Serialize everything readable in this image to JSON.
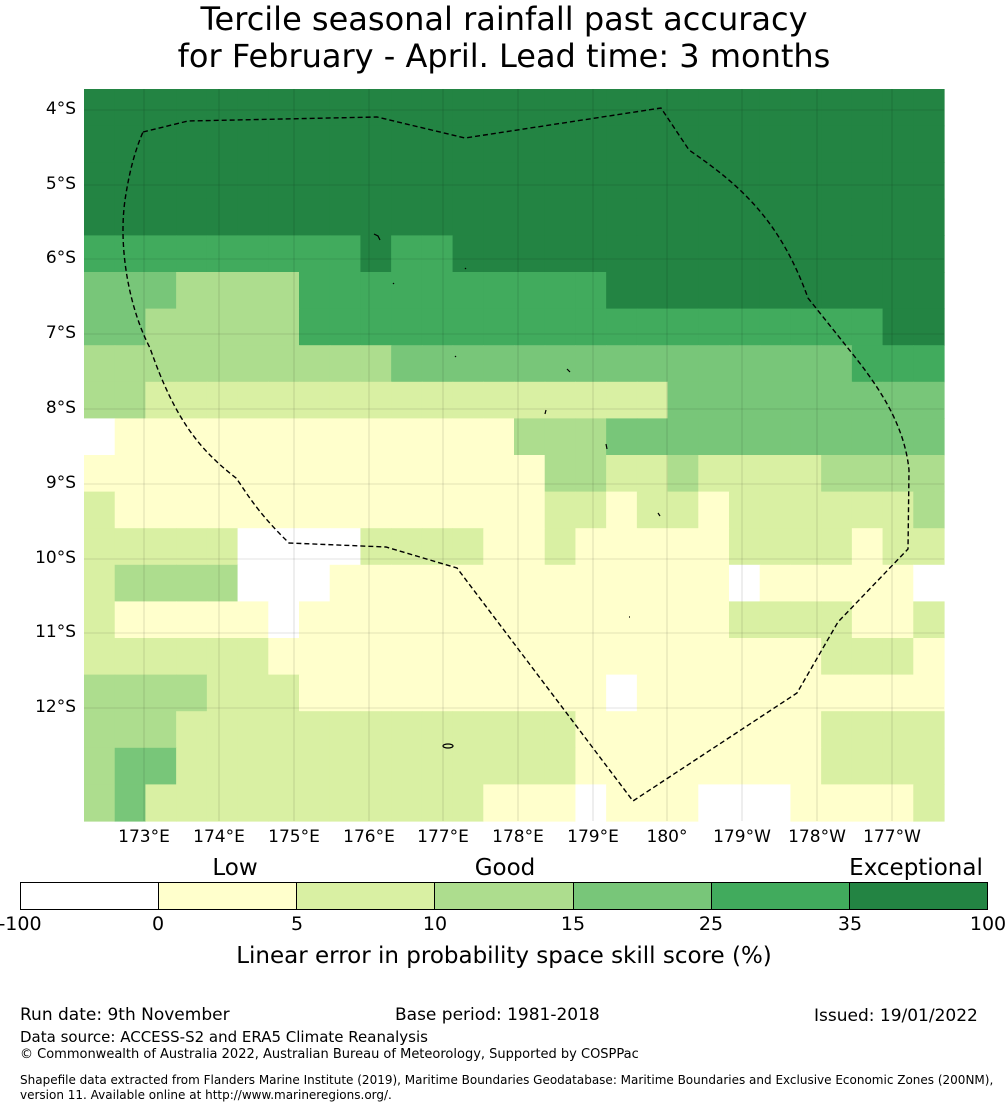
{
  "title_line1": "Tercile seasonal rainfall past accuracy",
  "title_line2": "for February - April. Lead time: 3 months",
  "lat_labels": [
    "4°S",
    "5°S",
    "6°S",
    "7°S",
    "8°S",
    "9°S",
    "10°S",
    "11°S",
    "12°S"
  ],
  "lon_labels": [
    "173°E",
    "174°E",
    "175°E",
    "176°E",
    "177°E",
    "178°E",
    "179°E",
    "180°",
    "179°W",
    "178°W",
    "177°W"
  ],
  "categories": {
    "low": "Low",
    "good": "Good",
    "exceptional": "Exceptional"
  },
  "colorbar": {
    "ticks": [
      "-100",
      "0",
      "5",
      "10",
      "15",
      "25",
      "35",
      "100"
    ],
    "colors": [
      "#ffffff",
      "#ffffcc",
      "#d9f0a3",
      "#addd8e",
      "#78c679",
      "#41ab5d",
      "#238443"
    ],
    "label": "Linear error in probability space skill score (%)"
  },
  "grid_values": [
    "6666666666666666666666666666",
    "6666666666666666666666666666",
    "6666666666666666666666666666",
    "6666666666666666666666666666",
    "5555555556556666666666666666",
    "4443333555555555566666666666",
    "4433333555555555555555555566",
    "3333333333444444444444444555",
    "3322222222222222222444444444",
    "0111111111111133344444444444",
    "1111111111111113322322223333",
    "2111111111111112212212222223",
    "2222200002222112111112222122",
    "2333300011111111111110111110",
    "2111110111111111111112222112",
    "2222221111111111111111112221",
    "3333222111111111101111111111",
    "3332222222222222111111112222",
    "3442222222222222111111112222",
    "3422222222222111011100011112"
  ],
  "footer": {
    "run_date": "Run date: 9th November",
    "base_period": "Base period: 1981-2018",
    "issued": "Issued: 19/01/2022",
    "data_source": "Data source: ACCESS-S2 and ERA5 Climate Reanalysis",
    "copyright": "© Commonwealth of Australia 2022, Australian Bureau of Meteorology, Supported by COSPPac",
    "shapefile": "Shapefile data extracted from Flanders Marine Institute (2019), Maritime Boundaries Geodatabase: Maritime Boundaries and Exclusive Economic Zones (200NM), version 11. Available online at http://www.marineregions.org/."
  }
}
